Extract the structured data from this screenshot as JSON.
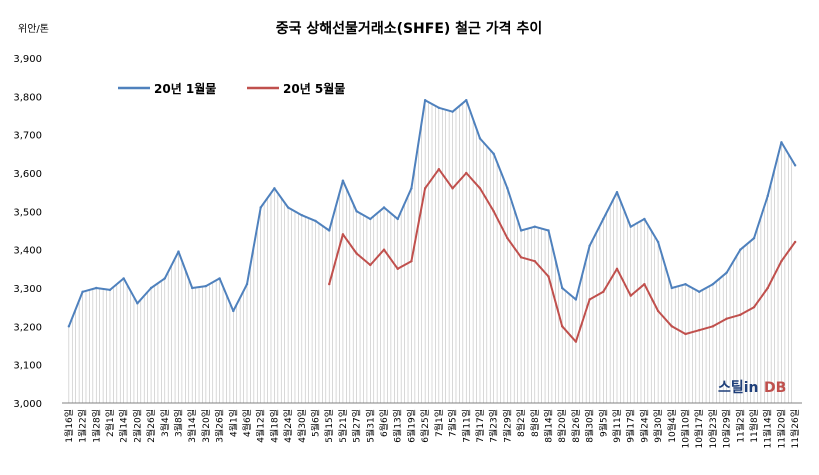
{
  "chart_data": {
    "type": "line",
    "title": "중국 상해선물거래소(SHFE) 철근 가격 추이",
    "unit": "위안/톤",
    "ylim": [
      3000,
      3900
    ],
    "yticks": [
      "3,000",
      "3,100",
      "3,200",
      "3,300",
      "3,400",
      "3,500",
      "3,600",
      "3,700",
      "3,800",
      "3,900"
    ],
    "grid": false,
    "legend_position": "top-left",
    "watermark": {
      "text": "스틸in",
      "text2": "DB"
    },
    "colors": {
      "jan": "#4F81BD",
      "may": "#C0504D",
      "droplines": "#BFBFBF"
    },
    "x": [
      "1월16일",
      "1월22일",
      "1월28일",
      "2월1일",
      "2월14일",
      "2월20일",
      "2월26일",
      "3월4일",
      "3월8일",
      "3월14일",
      "3월20일",
      "3월26일",
      "4월1일",
      "4월6일",
      "4월12일",
      "4월18일",
      "4월24일",
      "4월30일",
      "5월6일",
      "5월15일",
      "5월21일",
      "5월27일",
      "5월31일",
      "6월6일",
      "6월13일",
      "6월19일",
      "6월25일",
      "7월1일",
      "7월5일",
      "7월11일",
      "7월17일",
      "7월23일",
      "7월29일",
      "8월2일",
      "8월8일",
      "8월14일",
      "8월20일",
      "8월26일",
      "8월30일",
      "9월5일",
      "9월11일",
      "9월17일",
      "9월24일",
      "9월30일",
      "10월4일",
      "10월10일",
      "10월17일",
      "10월23일",
      "10월29일",
      "11월2일",
      "11월8일",
      "11월14일",
      "11월20일",
      "11월26일"
    ],
    "series": [
      {
        "name": "20년 1월물",
        "color": "#4F81BD",
        "values": [
          3200,
          3290,
          3300,
          3295,
          3325,
          3260,
          3300,
          3325,
          3395,
          3300,
          3305,
          3325,
          3240,
          3310,
          3510,
          3560,
          3510,
          3490,
          3475,
          3450,
          3580,
          3500,
          3480,
          3510,
          3480,
          3560,
          3790,
          3770,
          3760,
          3790,
          3690,
          3650,
          3560,
          3450,
          3460,
          3450,
          3300,
          3270,
          3410,
          3480,
          3550,
          3460,
          3480,
          3420,
          3300,
          3310,
          3290,
          3310,
          3340,
          3400,
          3430,
          3540,
          3680,
          3620
        ]
      },
      {
        "name": "20년 5월물",
        "color": "#C0504D",
        "values": [
          null,
          null,
          null,
          null,
          null,
          null,
          null,
          null,
          null,
          null,
          null,
          null,
          null,
          null,
          null,
          null,
          null,
          null,
          null,
          3310,
          3440,
          3390,
          3360,
          3400,
          3350,
          3370,
          3560,
          3610,
          3560,
          3600,
          3560,
          3500,
          3430,
          3380,
          3370,
          3330,
          3200,
          3160,
          3270,
          3290,
          3350,
          3280,
          3310,
          3240,
          3200,
          3180,
          3190,
          3200,
          3220,
          3230,
          3250,
          3300,
          3370,
          3420
        ]
      }
    ]
  }
}
